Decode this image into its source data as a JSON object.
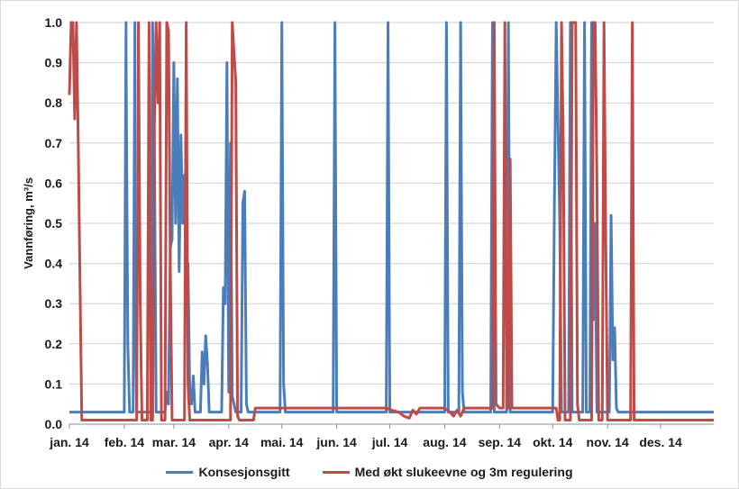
{
  "chart_data": {
    "type": "line",
    "title": "",
    "xlabel": "",
    "ylabel": "Vannføring, m³/s",
    "ylim": [
      0,
      1.0
    ],
    "xlim": [
      "2014-01-01",
      "2014-12-31"
    ],
    "yticks": [
      "0.0",
      "0.1",
      "0.2",
      "0.3",
      "0.4",
      "0.5",
      "0.6",
      "0.7",
      "0.8",
      "0.9",
      "1.0"
    ],
    "xticks": [
      {
        "date": "2014-01-01",
        "label": "jan. 14"
      },
      {
        "date": "2014-02-01",
        "label": "feb. 14"
      },
      {
        "date": "2014-03-01",
        "label": "mar. 14"
      },
      {
        "date": "2014-04-01",
        "label": "apr. 14"
      },
      {
        "date": "2014-05-01",
        "label": "mai. 14"
      },
      {
        "date": "2014-06-01",
        "label": "jun. 14"
      },
      {
        "date": "2014-07-01",
        "label": "jul. 14"
      },
      {
        "date": "2014-08-01",
        "label": "aug. 14"
      },
      {
        "date": "2014-09-01",
        "label": "sep. 14"
      },
      {
        "date": "2014-10-01",
        "label": "okt. 14"
      },
      {
        "date": "2014-11-01",
        "label": "nov. 14"
      },
      {
        "date": "2014-12-01",
        "label": "des. 14"
      }
    ],
    "grid": "horizontal",
    "legend": "bottom",
    "series": [
      {
        "name": "Konsesjonsgitt",
        "color": "#4a7ebb",
        "points": [
          [
            "2014-01-01",
            0.03
          ],
          [
            "2014-02-01",
            0.03
          ],
          [
            "2014-02-02",
            1.0
          ],
          [
            "2014-02-02",
            0.94
          ],
          [
            "2014-02-03",
            0.2
          ],
          [
            "2014-02-04",
            0.03
          ],
          [
            "2014-02-06",
            0.03
          ],
          [
            "2014-02-07",
            1.0
          ],
          [
            "2014-02-07",
            0.45
          ],
          [
            "2014-02-08",
            0.03
          ],
          [
            "2014-02-16",
            0.03
          ],
          [
            "2014-02-17",
            1.0
          ],
          [
            "2014-02-18",
            0.7
          ],
          [
            "2014-02-19",
            0.03
          ],
          [
            "2014-02-24",
            0.03
          ],
          [
            "2014-02-25",
            0.08
          ],
          [
            "2014-02-26",
            0.05
          ],
          [
            "2014-02-27",
            0.44
          ],
          [
            "2014-02-28",
            0.46
          ],
          [
            "2014-03-01",
            0.9
          ],
          [
            "2014-03-02",
            0.5
          ],
          [
            "2014-03-03",
            0.86
          ],
          [
            "2014-03-04",
            0.38
          ],
          [
            "2014-03-05",
            0.72
          ],
          [
            "2014-03-06",
            0.5
          ],
          [
            "2014-03-07",
            0.62
          ],
          [
            "2014-03-08",
            0.31
          ],
          [
            "2014-03-09",
            0.4
          ],
          [
            "2014-03-10",
            0.08
          ],
          [
            "2014-03-11",
            0.05
          ],
          [
            "2014-03-12",
            0.12
          ],
          [
            "2014-03-13",
            0.03
          ],
          [
            "2014-03-16",
            0.03
          ],
          [
            "2014-03-17",
            0.18
          ],
          [
            "2014-03-18",
            0.1
          ],
          [
            "2014-03-19",
            0.22
          ],
          [
            "2014-03-20",
            0.15
          ],
          [
            "2014-03-21",
            0.03
          ],
          [
            "2014-03-28",
            0.03
          ],
          [
            "2014-03-29",
            0.34
          ],
          [
            "2014-03-30",
            0.3
          ],
          [
            "2014-03-31",
            0.9
          ],
          [
            "2014-04-01",
            0.08
          ],
          [
            "2014-04-02",
            0.7
          ],
          [
            "2014-04-03",
            0.07
          ],
          [
            "2014-04-05",
            0.03
          ],
          [
            "2014-04-08",
            0.03
          ],
          [
            "2014-04-09",
            0.55
          ],
          [
            "2014-04-10",
            0.58
          ],
          [
            "2014-04-11",
            0.05
          ],
          [
            "2014-04-12",
            0.03
          ],
          [
            "2014-04-30",
            0.03
          ],
          [
            "2014-05-01",
            1.0
          ],
          [
            "2014-05-02",
            0.1
          ],
          [
            "2014-05-03",
            0.03
          ],
          [
            "2014-05-30",
            0.03
          ],
          [
            "2014-05-31",
            1.0
          ],
          [
            "2014-06-01",
            0.03
          ],
          [
            "2014-06-29",
            0.03
          ],
          [
            "2014-06-30",
            1.0
          ],
          [
            "2014-07-01",
            0.03
          ],
          [
            "2014-08-01",
            0.03
          ],
          [
            "2014-08-02",
            1.0
          ],
          [
            "2014-08-03",
            0.03
          ],
          [
            "2014-08-09",
            0.03
          ],
          [
            "2014-08-10",
            1.0
          ],
          [
            "2014-08-11",
            0.08
          ],
          [
            "2014-08-12",
            0.03
          ],
          [
            "2014-08-27",
            0.03
          ],
          [
            "2014-08-28",
            1.0
          ],
          [
            "2014-08-29",
            0.03
          ],
          [
            "2014-09-05",
            0.03
          ],
          [
            "2014-09-06",
            1.0
          ],
          [
            "2014-09-07",
            0.03
          ],
          [
            "2014-10-01",
            0.03
          ],
          [
            "2014-10-02",
            0.56
          ],
          [
            "2014-10-03",
            1.0
          ],
          [
            "2014-10-05",
            0.5
          ],
          [
            "2014-10-06",
            0.03
          ],
          [
            "2014-10-10",
            0.03
          ],
          [
            "2014-10-11",
            1.0
          ],
          [
            "2014-10-12",
            0.03
          ],
          [
            "2014-10-18",
            0.03
          ],
          [
            "2014-10-19",
            1.0
          ],
          [
            "2014-10-20",
            0.03
          ],
          [
            "2014-10-22",
            0.03
          ],
          [
            "2014-10-23",
            1.0
          ],
          [
            "2014-10-24",
            0.26
          ],
          [
            "2014-10-25",
            0.5
          ],
          [
            "2014-10-26",
            0.03
          ],
          [
            "2014-11-02",
            0.03
          ],
          [
            "2014-11-03",
            0.52
          ],
          [
            "2014-11-04",
            0.16
          ],
          [
            "2014-11-05",
            0.24
          ],
          [
            "2014-11-06",
            0.04
          ],
          [
            "2014-11-07",
            0.03
          ],
          [
            "2014-12-31",
            0.03
          ]
        ]
      },
      {
        "name": "Med økt slukeevne og 3m regulering",
        "color": "#be4b48",
        "points": [
          [
            "2014-01-01",
            0.82
          ],
          [
            "2014-01-02",
            1.0
          ],
          [
            "2014-01-03",
            1.0
          ],
          [
            "2014-01-04",
            0.76
          ],
          [
            "2014-01-05",
            1.0
          ],
          [
            "2014-01-06",
            0.7
          ],
          [
            "2014-01-07",
            0.35
          ],
          [
            "2014-01-08",
            0.01
          ],
          [
            "2014-02-08",
            0.01
          ],
          [
            "2014-02-09",
            1.0
          ],
          [
            "2014-02-10",
            0.3
          ],
          [
            "2014-02-11",
            0.01
          ],
          [
            "2014-02-14",
            0.01
          ],
          [
            "2014-02-15",
            1.0
          ],
          [
            "2014-02-16",
            0.01
          ],
          [
            "2014-02-17",
            0.01
          ],
          [
            "2014-02-18",
            0.75
          ],
          [
            "2014-02-19",
            1.0
          ],
          [
            "2014-02-20",
            0.8
          ],
          [
            "2014-02-21",
            1.0
          ],
          [
            "2014-02-22",
            0.01
          ],
          [
            "2014-02-24",
            0.01
          ],
          [
            "2014-02-25",
            1.0
          ],
          [
            "2014-02-26",
            0.98
          ],
          [
            "2014-02-27",
            0.4
          ],
          [
            "2014-02-28",
            0.01
          ],
          [
            "2014-03-07",
            0.01
          ],
          [
            "2014-03-08",
            1.0
          ],
          [
            "2014-03-09",
            0.1
          ],
          [
            "2014-03-10",
            0.01
          ],
          [
            "2014-04-02",
            0.01
          ],
          [
            "2014-04-03",
            1.0
          ],
          [
            "2014-04-05",
            0.85
          ],
          [
            "2014-04-06",
            0.02
          ],
          [
            "2014-04-07",
            0.01
          ],
          [
            "2014-04-15",
            0.01
          ],
          [
            "2014-04-16",
            0.04
          ],
          [
            "2014-06-29",
            0.04
          ],
          [
            "2014-07-02",
            0.035
          ],
          [
            "2014-07-06",
            0.03
          ],
          [
            "2014-07-09",
            0.02
          ],
          [
            "2014-07-12",
            0.015
          ],
          [
            "2014-07-14",
            0.035
          ],
          [
            "2014-07-16",
            0.025
          ],
          [
            "2014-07-18",
            0.04
          ],
          [
            "2014-08-01",
            0.04
          ],
          [
            "2014-08-04",
            0.03
          ],
          [
            "2014-08-06",
            0.02
          ],
          [
            "2014-08-08",
            0.035
          ],
          [
            "2014-08-10",
            0.02
          ],
          [
            "2014-08-12",
            0.04
          ],
          [
            "2014-08-28",
            0.04
          ],
          [
            "2014-08-29",
            1.0
          ],
          [
            "2014-08-30",
            0.05
          ],
          [
            "2014-09-01",
            0.04
          ],
          [
            "2014-09-03",
            0.04
          ],
          [
            "2014-09-04",
            1.0
          ],
          [
            "2014-09-05",
            0.04
          ],
          [
            "2014-09-06",
            0.04
          ],
          [
            "2014-09-07",
            0.66
          ],
          [
            "2014-09-08",
            0.04
          ],
          [
            "2014-10-03",
            0.04
          ],
          [
            "2014-10-04",
            0.01
          ],
          [
            "2014-10-05",
            0.01
          ],
          [
            "2014-10-06",
            1.0
          ],
          [
            "2014-10-07",
            0.7
          ],
          [
            "2014-10-08",
            0.01
          ],
          [
            "2014-10-11",
            0.01
          ],
          [
            "2014-10-12",
            1.0
          ],
          [
            "2014-10-14",
            1.0
          ],
          [
            "2014-10-15",
            0.05
          ],
          [
            "2014-10-16",
            0.01
          ],
          [
            "2014-10-23",
            0.01
          ],
          [
            "2014-10-24",
            1.0
          ],
          [
            "2014-10-25",
            1.0
          ],
          [
            "2014-10-26",
            0.6
          ],
          [
            "2014-10-27",
            0.01
          ],
          [
            "2014-10-29",
            0.01
          ],
          [
            "2014-10-30",
            1.0
          ],
          [
            "2014-10-31",
            0.45
          ],
          [
            "2014-11-01",
            0.01
          ],
          [
            "2014-11-14",
            0.01
          ],
          [
            "2014-11-15",
            1.0
          ],
          [
            "2014-11-16",
            0.01
          ],
          [
            "2014-12-31",
            0.01
          ]
        ]
      }
    ]
  }
}
